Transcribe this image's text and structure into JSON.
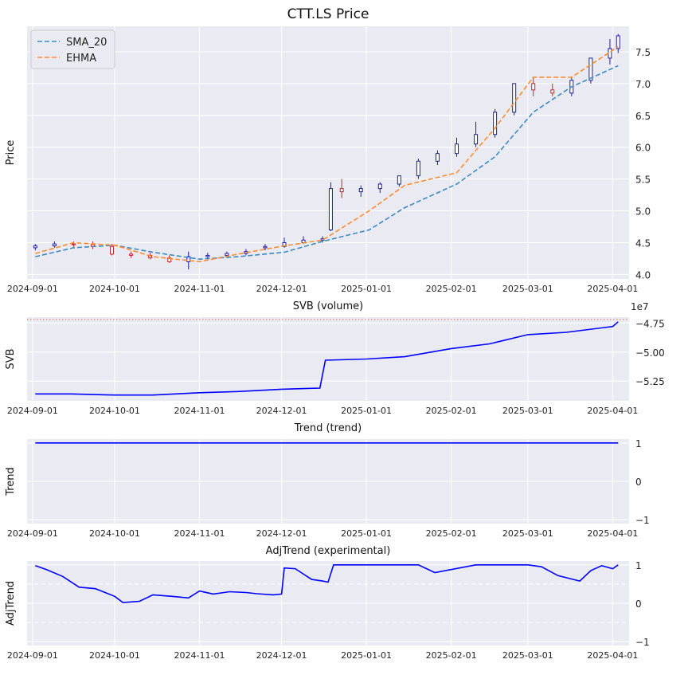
{
  "chart_data": [
    {
      "type": "candlestick",
      "title": "CTT.LS Price",
      "xlabel": "",
      "ylabel": "Price",
      "x_ticks": [
        "2024-09-01",
        "2024-10-01",
        "2024-11-01",
        "2024-12-01",
        "2025-01-01",
        "2025-02-01",
        "2025-03-01",
        "2025-04-01"
      ],
      "y_ticks": [
        "4.0",
        "4.5",
        "5.0",
        "5.5",
        "6.0",
        "6.5",
        "7.0",
        "7.5"
      ],
      "xlim": [
        "2024-08-30",
        "2025-04-07"
      ],
      "ylim": [
        3.93,
        7.9
      ],
      "grid": true,
      "legend_position": "upper-left",
      "colors": {
        "up_candle": "#1f1fa0",
        "down_candle": "#c0282d",
        "sma": "#3b8bc2",
        "ehma": "#ff8c2e"
      },
      "series": [
        {
          "name": "SMA_20",
          "style": "dashed",
          "color": "#3b8bc2",
          "x": [
            "2024-09-02",
            "2024-09-16",
            "2024-10-01",
            "2024-10-15",
            "2024-11-01",
            "2024-11-15",
            "2024-12-02",
            "2024-12-16",
            "2025-01-02",
            "2025-01-15",
            "2025-02-03",
            "2025-02-17",
            "2025-03-03",
            "2025-03-17",
            "2025-04-03"
          ],
          "y": [
            4.28,
            4.42,
            4.46,
            4.35,
            4.24,
            4.28,
            4.35,
            4.52,
            4.7,
            5.05,
            5.42,
            5.85,
            6.55,
            6.95,
            7.28
          ]
        },
        {
          "name": "EHMA",
          "style": "dashed",
          "color": "#ff8c2e",
          "x": [
            "2024-09-02",
            "2024-09-16",
            "2024-10-01",
            "2024-10-15",
            "2024-11-01",
            "2024-11-15",
            "2024-12-02",
            "2024-12-16",
            "2025-01-02",
            "2025-01-15",
            "2025-02-03",
            "2025-02-17",
            "2025-03-03",
            "2025-03-17",
            "2025-04-03"
          ],
          "y": [
            4.33,
            4.5,
            4.46,
            4.28,
            4.2,
            4.32,
            4.45,
            4.54,
            5.0,
            5.4,
            5.6,
            6.3,
            7.1,
            7.1,
            7.58
          ]
        }
      ],
      "ohlc": {
        "dates": [
          "2024-09-02",
          "2024-09-09",
          "2024-09-16",
          "2024-09-23",
          "2024-09-30",
          "2024-10-07",
          "2024-10-14",
          "2024-10-21",
          "2024-10-28",
          "2024-11-04",
          "2024-11-11",
          "2024-11-18",
          "2024-11-25",
          "2024-12-02",
          "2024-12-09",
          "2024-12-16",
          "2024-12-19",
          "2024-12-23",
          "2024-12-30",
          "2025-01-06",
          "2025-01-13",
          "2025-01-20",
          "2025-01-27",
          "2025-02-03",
          "2025-02-10",
          "2025-02-17",
          "2025-02-24",
          "2025-03-03",
          "2025-03-10",
          "2025-03-17",
          "2025-03-24",
          "2025-03-31",
          "2025-04-03"
        ],
        "open": [
          4.42,
          4.45,
          4.48,
          4.47,
          4.44,
          4.32,
          4.3,
          4.26,
          4.2,
          4.28,
          4.3,
          4.33,
          4.42,
          4.44,
          4.5,
          4.54,
          4.7,
          5.35,
          5.3,
          5.35,
          5.42,
          5.55,
          5.78,
          5.9,
          6.05,
          6.2,
          6.55,
          7.0,
          6.9,
          6.85,
          7.05,
          7.4,
          7.55
        ],
        "high": [
          4.48,
          4.52,
          4.52,
          4.52,
          4.48,
          4.36,
          4.34,
          4.3,
          4.36,
          4.34,
          4.36,
          4.4,
          4.48,
          4.58,
          4.6,
          4.6,
          5.45,
          5.5,
          5.4,
          5.45,
          5.55,
          5.82,
          5.95,
          6.15,
          6.4,
          6.6,
          7.0,
          7.1,
          7.0,
          7.1,
          7.4,
          7.7,
          7.78
        ],
        "low": [
          4.38,
          4.42,
          4.43,
          4.4,
          4.3,
          4.26,
          4.24,
          4.18,
          4.08,
          4.24,
          4.26,
          4.3,
          4.38,
          4.42,
          4.48,
          4.5,
          4.68,
          5.2,
          5.22,
          5.28,
          5.38,
          5.5,
          5.72,
          5.85,
          6.0,
          6.15,
          6.5,
          6.8,
          6.8,
          6.8,
          7.0,
          7.3,
          7.48
        ],
        "close": [
          4.45,
          4.48,
          4.47,
          4.44,
          4.32,
          4.3,
          4.26,
          4.2,
          4.28,
          4.3,
          4.33,
          4.36,
          4.44,
          4.5,
          4.54,
          4.56,
          5.35,
          5.3,
          5.35,
          5.42,
          5.55,
          5.78,
          5.9,
          6.05,
          6.2,
          6.55,
          7.0,
          6.9,
          6.85,
          7.05,
          7.4,
          7.55,
          7.75
        ]
      }
    },
    {
      "type": "line",
      "title": "SVB (volume)",
      "ylabel": "SVB",
      "x_ticks": [
        "2024-09-01",
        "2024-10-01",
        "2024-11-01",
        "2024-12-01",
        "2025-01-01",
        "2025-02-01",
        "2025-03-01",
        "2025-04-01"
      ],
      "y_ticks": [
        "−4.75",
        "−5.00",
        "−5.25"
      ],
      "offset_text": "1e7",
      "xlim": [
        "2024-08-30",
        "2025-04-07"
      ],
      "ylim": [
        -5.42,
        -4.7
      ],
      "grid": true,
      "hline": {
        "y": -4.72,
        "style": "dotted",
        "color": "#e07050"
      },
      "series": [
        {
          "color": "#0000ff",
          "x": [
            "2024-09-02",
            "2024-09-15",
            "2024-10-01",
            "2024-10-15",
            "2024-11-01",
            "2024-11-15",
            "2024-12-01",
            "2024-12-15",
            "2024-12-17",
            "2025-01-01",
            "2025-01-15",
            "2025-02-01",
            "2025-02-15",
            "2025-03-01",
            "2025-03-15",
            "2025-04-01",
            "2025-04-03"
          ],
          "y": [
            -5.36,
            -5.36,
            -5.37,
            -5.37,
            -5.35,
            -5.34,
            -5.32,
            -5.31,
            -5.07,
            -5.06,
            -5.04,
            -4.97,
            -4.93,
            -4.85,
            -4.83,
            -4.78,
            -4.74
          ]
        }
      ]
    },
    {
      "type": "line",
      "title": "Trend (trend)",
      "ylabel": "Trend",
      "x_ticks": [
        "2024-09-01",
        "2024-10-01",
        "2024-11-01",
        "2024-12-01",
        "2025-01-01",
        "2025-02-01",
        "2025-03-01",
        "2025-04-01"
      ],
      "y_ticks": [
        "1",
        "0",
        "−1"
      ],
      "xlim": [
        "2024-08-30",
        "2025-04-07"
      ],
      "ylim": [
        -1.1,
        1.1
      ],
      "grid": true,
      "series": [
        {
          "color": "#0000ff",
          "x": [
            "2024-09-02",
            "2025-04-03"
          ],
          "y": [
            1,
            1
          ]
        }
      ]
    },
    {
      "type": "line",
      "title": "AdjTrend (experimental)",
      "ylabel": "AdjTrend",
      "x_ticks": [
        "2024-09-01",
        "2024-10-01",
        "2024-11-01",
        "2024-12-01",
        "2025-01-01",
        "2025-02-01",
        "2025-03-01",
        "2025-04-01"
      ],
      "y_ticks": [
        "1",
        "0",
        "−1"
      ],
      "xlim": [
        "2024-08-30",
        "2025-04-07"
      ],
      "ylim": [
        -1.1,
        1.1
      ],
      "grid": true,
      "hlines": [
        {
          "y": 0.5,
          "style": "dashed",
          "color": "#ffffff"
        },
        {
          "y": -0.5,
          "style": "dashed",
          "color": "#ffffff"
        }
      ],
      "series": [
        {
          "color": "#0000ff",
          "x": [
            "2024-09-02",
            "2024-09-06",
            "2024-09-12",
            "2024-09-18",
            "2024-09-24",
            "2024-10-01",
            "2024-10-04",
            "2024-10-10",
            "2024-10-15",
            "2024-10-22",
            "2024-10-28",
            "2024-11-01",
            "2024-11-06",
            "2024-11-12",
            "2024-11-18",
            "2024-11-22",
            "2024-11-28",
            "2024-12-01",
            "2024-12-02",
            "2024-12-06",
            "2024-12-12",
            "2024-12-16",
            "2024-12-18",
            "2024-12-20",
            "2025-01-05",
            "2025-01-20",
            "2025-01-26",
            "2025-02-10",
            "2025-02-24",
            "2025-03-01",
            "2025-03-06",
            "2025-03-12",
            "2025-03-20",
            "2025-03-24",
            "2025-03-28",
            "2025-04-01",
            "2025-04-03"
          ],
          "y": [
            0.98,
            0.88,
            0.7,
            0.42,
            0.38,
            0.18,
            0.02,
            0.05,
            0.22,
            0.18,
            0.14,
            0.32,
            0.24,
            0.3,
            0.28,
            0.25,
            0.22,
            0.24,
            0.92,
            0.9,
            0.62,
            0.58,
            0.55,
            1.0,
            1.0,
            1.0,
            0.8,
            1.0,
            1.0,
            1.0,
            0.95,
            0.72,
            0.58,
            0.85,
            0.98,
            0.9,
            1.0
          ]
        }
      ]
    }
  ]
}
